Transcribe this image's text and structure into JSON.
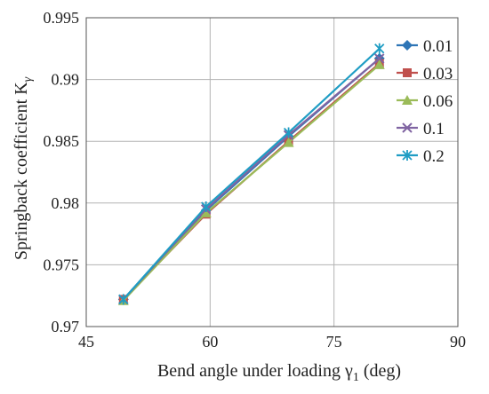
{
  "chart_data": {
    "type": "line",
    "title": "",
    "xlabel": "Bend angle under loading γ",
    "xlabel_sub": "1",
    "xlabel_unit": " (deg)",
    "ylabel": "Springback coefficient K",
    "ylabel_sub": "γ",
    "xlim": [
      45,
      90
    ],
    "ylim": [
      0.97,
      0.995
    ],
    "xticks": [
      45,
      60,
      75,
      90
    ],
    "xtick_labels": [
      "45",
      "60",
      "75",
      "90"
    ],
    "yticks": [
      0.97,
      0.975,
      0.98,
      0.985,
      0.99,
      0.995
    ],
    "ytick_labels": [
      "0.97",
      "0.975",
      "0.98",
      "0.985",
      "0.99",
      "0.995"
    ],
    "grid": true,
    "legend_position": "top-right",
    "series": [
      {
        "name": "0.01",
        "color": "#2E75B6",
        "marker": "diamond",
        "x": [
          49.5,
          59.5,
          69.5,
          80.5
        ],
        "y": [
          0.9722,
          0.9794,
          0.9854,
          0.9917
        ]
      },
      {
        "name": "0.03",
        "color": "#C0504D",
        "marker": "square",
        "x": [
          49.5,
          59.5,
          69.5,
          80.5
        ],
        "y": [
          0.9722,
          0.9791,
          0.985,
          0.9913
        ]
      },
      {
        "name": "0.06",
        "color": "#9BBB59",
        "marker": "triangle",
        "x": [
          49.5,
          59.5,
          69.5,
          80.5
        ],
        "y": [
          0.9721,
          0.9792,
          0.9849,
          0.9912
        ]
      },
      {
        "name": "0.1",
        "color": "#8064A2",
        "marker": "x",
        "x": [
          49.5,
          59.5,
          69.5,
          80.5
        ],
        "y": [
          0.9722,
          0.9795,
          0.9855,
          0.9917
        ]
      },
      {
        "name": "0.2",
        "color": "#1F9DC4",
        "marker": "star",
        "x": [
          49.5,
          59.5,
          69.5,
          80.5
        ],
        "y": [
          0.9722,
          0.9797,
          0.9857,
          0.9925
        ]
      }
    ]
  }
}
